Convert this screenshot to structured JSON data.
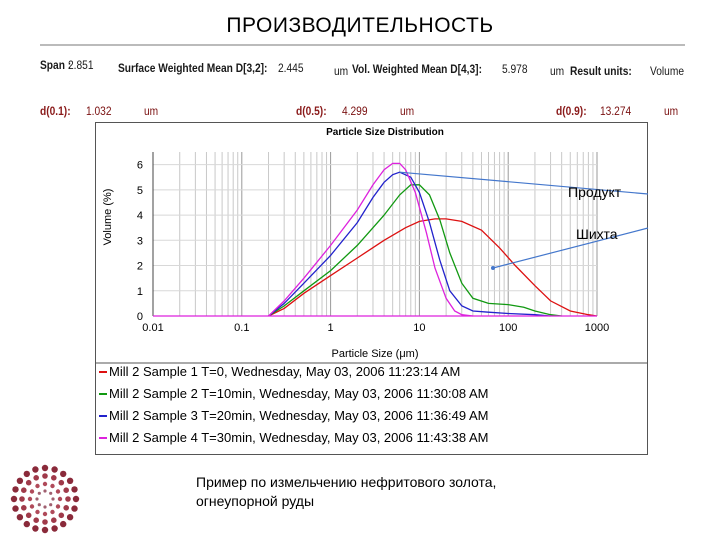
{
  "slide": {
    "title": "ПРОИЗВОДИТЕЛЬНОСТЬ",
    "caption_line1": "Пример по измельчению нефритового золота,",
    "caption_line2": "огнеупорной руды"
  },
  "stats_row1": {
    "span_label": "Span :",
    "span_value": "2.851",
    "surface_label": "Surface Weighted Mean D[3,2]:",
    "surface_value": "2.445",
    "surface_unit": "um",
    "vol_label": "Vol. Weighted Mean D[4,3]:",
    "vol_value": "5.978",
    "vol_unit": "um",
    "result_label": "Result units:",
    "result_value": "Volume"
  },
  "stats_row2": {
    "d01_label": "d(0.1):",
    "d01_value": "1.032",
    "d01_unit": "um",
    "d05_label": "d(0.5):",
    "d05_value": "4.299",
    "d05_unit": "um",
    "d09_label": "d(0.9):",
    "d09_value": "13.274",
    "d09_unit": "um"
  },
  "callouts": {
    "product": "Продукт",
    "feed": "Шихта"
  },
  "colors": {
    "sample1": "#dd1111",
    "sample2": "#119911",
    "sample3": "#2222cc",
    "sample4": "#dd22dd",
    "callout_line": "#4477cc"
  },
  "chart_data": {
    "type": "line",
    "title": "Particle Size Distribution",
    "xlabel": "Particle Size (μm)",
    "ylabel": "Volume (%)",
    "x_scale": "log",
    "xlim": [
      0.01,
      1000
    ],
    "ylim": [
      0,
      6.5
    ],
    "x_ticks": [
      "0.01",
      "0.1",
      "1",
      "10",
      "100",
      "1000"
    ],
    "y_ticks": [
      "0",
      "1",
      "2",
      "3",
      "4",
      "5",
      "6"
    ],
    "grid": true,
    "legend_position": "bottom",
    "series": [
      {
        "name": "Mill 2 Sample 1 T=0, Wednesday, May 03, 2006 11:23:14 AM",
        "color": "#dd1111",
        "points": [
          [
            0.2,
            0
          ],
          [
            0.3,
            0.3
          ],
          [
            0.5,
            0.9
          ],
          [
            1,
            1.6
          ],
          [
            2,
            2.3
          ],
          [
            4,
            3.0
          ],
          [
            7,
            3.5
          ],
          [
            10,
            3.75
          ],
          [
            15,
            3.85
          ],
          [
            20,
            3.85
          ],
          [
            30,
            3.75
          ],
          [
            50,
            3.4
          ],
          [
            80,
            2.7
          ],
          [
            120,
            2.0
          ],
          [
            200,
            1.2
          ],
          [
            300,
            0.6
          ],
          [
            500,
            0.2
          ],
          [
            800,
            0.05
          ],
          [
            1000,
            0
          ]
        ]
      },
      {
        "name": "Mill 2 Sample 2 T=10min, Wednesday, May 03, 2006 11:30:08 AM",
        "color": "#119911",
        "points": [
          [
            0.2,
            0
          ],
          [
            0.3,
            0.4
          ],
          [
            0.5,
            1.0
          ],
          [
            1,
            1.8
          ],
          [
            2,
            2.8
          ],
          [
            4,
            4.0
          ],
          [
            6,
            4.8
          ],
          [
            8,
            5.2
          ],
          [
            10,
            5.2
          ],
          [
            13,
            4.8
          ],
          [
            17,
            3.8
          ],
          [
            22,
            2.5
          ],
          [
            30,
            1.3
          ],
          [
            40,
            0.7
          ],
          [
            60,
            0.5
          ],
          [
            100,
            0.45
          ],
          [
            150,
            0.35
          ],
          [
            200,
            0.2
          ],
          [
            300,
            0.05
          ],
          [
            400,
            0
          ]
        ]
      },
      {
        "name": "Mill 2 Sample 3 T=20min, Wednesday, May 03, 2006 11:36:49 AM",
        "color": "#2222cc",
        "points": [
          [
            0.2,
            0
          ],
          [
            0.3,
            0.5
          ],
          [
            0.5,
            1.3
          ],
          [
            1,
            2.4
          ],
          [
            2,
            3.7
          ],
          [
            3,
            4.7
          ],
          [
            4,
            5.3
          ],
          [
            5,
            5.6
          ],
          [
            6,
            5.7
          ],
          [
            8,
            5.5
          ],
          [
            10,
            4.9
          ],
          [
            13,
            3.7
          ],
          [
            17,
            2.2
          ],
          [
            22,
            1.0
          ],
          [
            30,
            0.4
          ],
          [
            40,
            0.2
          ],
          [
            60,
            0.15
          ],
          [
            100,
            0.1
          ],
          [
            200,
            0.05
          ],
          [
            300,
            0
          ]
        ]
      },
      {
        "name": "Mill 2 Sample 4 T=30min, Wednesday, May 03, 2006 11:43:38 AM",
        "color": "#dd22dd",
        "points": [
          [
            0.2,
            0
          ],
          [
            0.3,
            0.6
          ],
          [
            0.5,
            1.5
          ],
          [
            1,
            2.8
          ],
          [
            2,
            4.2
          ],
          [
            3,
            5.2
          ],
          [
            4,
            5.8
          ],
          [
            5,
            6.05
          ],
          [
            6,
            6.05
          ],
          [
            7,
            5.8
          ],
          [
            9,
            4.9
          ],
          [
            12,
            3.3
          ],
          [
            15,
            1.9
          ],
          [
            20,
            0.7
          ],
          [
            25,
            0.2
          ],
          [
            30,
            0.05
          ],
          [
            40,
            0
          ]
        ]
      }
    ]
  }
}
